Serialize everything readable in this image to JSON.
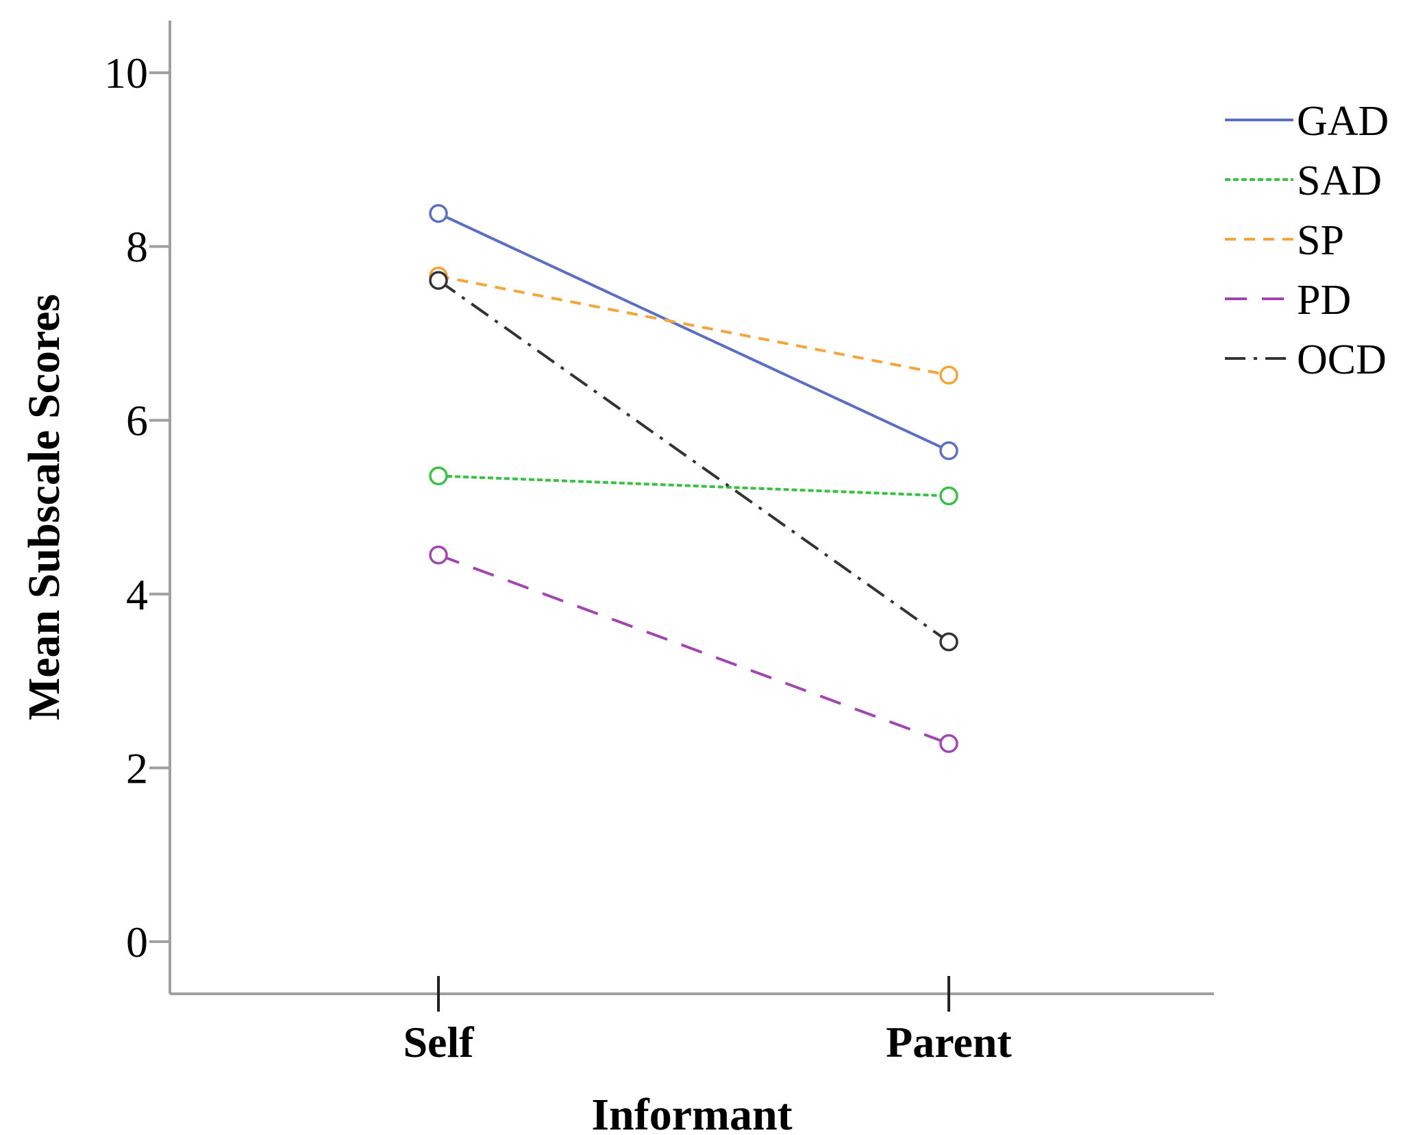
{
  "chart_data": {
    "type": "line",
    "xlabel": "Informant",
    "ylabel": "Mean Subscale Scores",
    "categories": [
      "Self",
      "Parent"
    ],
    "ylim": [
      -0.6,
      10.6
    ],
    "yticks": [
      0,
      2,
      4,
      6,
      8,
      10
    ],
    "grid": false,
    "legend_position": "top-right",
    "series": [
      {
        "name": "GAD",
        "values": [
          8.38,
          5.65
        ],
        "color": "#5a6fc4",
        "dash": "solid"
      },
      {
        "name": "SAD",
        "values": [
          5.36,
          5.13
        ],
        "color": "#3cbf46",
        "dash": "dotted"
      },
      {
        "name": "SP",
        "values": [
          7.66,
          6.52
        ],
        "color": "#f5a43a",
        "dash": "dashed-short"
      },
      {
        "name": "PD",
        "values": [
          4.45,
          2.28
        ],
        "color": "#a146b0",
        "dash": "dashed-long"
      },
      {
        "name": "OCD",
        "values": [
          7.61,
          3.45
        ],
        "color": "#333333",
        "dash": "dash-dot"
      }
    ]
  }
}
